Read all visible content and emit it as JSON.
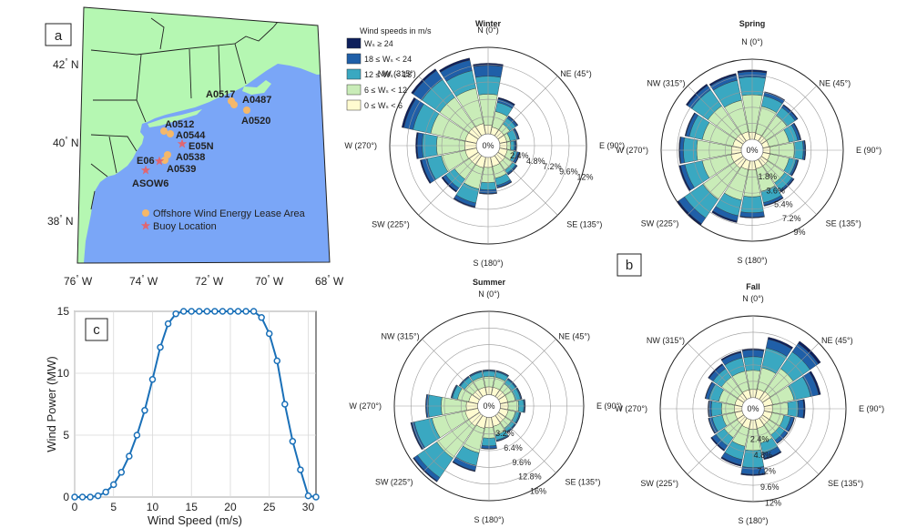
{
  "panel_labels": {
    "a": "a",
    "b": "b",
    "c": "c"
  },
  "map": {
    "lat_labels": [
      {
        "deg": "42",
        "dir": "N"
      },
      {
        "deg": "40",
        "dir": "N"
      },
      {
        "deg": "38",
        "dir": "N"
      }
    ],
    "lon_labels": [
      {
        "deg": "76",
        "dir": "W"
      },
      {
        "deg": "74",
        "dir": "W"
      },
      {
        "deg": "72",
        "dir": "W"
      },
      {
        "deg": "70",
        "dir": "W"
      },
      {
        "deg": "68",
        "dir": "W"
      }
    ],
    "lease_areas": [
      "A0517",
      "A0487",
      "A0520",
      "A0512",
      "A0544",
      "A0538",
      "A0539"
    ],
    "buoys": [
      "E05N",
      "E06",
      "ASOW6"
    ],
    "legend": {
      "lease": "Offshore Wind Energy Lease Area",
      "buoy": "Buoy Location"
    },
    "colors": {
      "land": "#b5f7b2",
      "ocean": "#7aa6f7",
      "lease": "#f5b869",
      "buoy": "#e06670"
    }
  },
  "rose_legend": {
    "title": "Wind speeds in m/s",
    "bins": [
      {
        "label": "Wₛ ≥ 24",
        "color": "#0d1f5c"
      },
      {
        "label": "18 ≤ Wₛ < 24",
        "color": "#1f5fa8"
      },
      {
        "label": "12 ≤ Wₛ < 18",
        "color": "#3aa8c1"
      },
      {
        "label": "6 ≤ Wₛ < 12",
        "color": "#c9ecb8"
      },
      {
        "label": "0 ≤ Wₛ < 6",
        "color": "#fffbd0"
      }
    ]
  },
  "rose_direction_labels": [
    "N (0°)",
    "NE (45°)",
    "E (90°)",
    "SE (135°)",
    "S (180°)",
    "SW (225°)",
    "W (270°)",
    "NW (315°)"
  ],
  "chart_data": [
    {
      "type": "windrose",
      "title": "Winter",
      "rings": [
        "2.4%",
        "4.8%",
        "7.2%",
        "9.6%",
        "12%"
      ],
      "max_pct": 12,
      "directions_deg": [
        0,
        22.5,
        45,
        67.5,
        90,
        112.5,
        135,
        157.5,
        180,
        202.5,
        225,
        247.5,
        270,
        292.5,
        315,
        337.5
      ],
      "cumulative_pct": [
        [
          1.2,
          1.0,
          1.0,
          1.0,
          1.0,
          1.1,
          1.2,
          1.3,
          1.4,
          1.5,
          1.5,
          1.6,
          1.6,
          1.6,
          1.6,
          1.5
        ],
        [
          5.5,
          3.2,
          2.0,
          1.5,
          1.5,
          2.0,
          2.5,
          3.0,
          3.5,
          4.5,
          4.0,
          5.0,
          5.5,
          6.5,
          6.5,
          6.5
        ],
        [
          8.0,
          4.5,
          3.0,
          2.5,
          2.0,
          2.5,
          3.0,
          4.0,
          4.5,
          6.5,
          5.5,
          7.0,
          7.5,
          9.0,
          9.5,
          9.0
        ],
        [
          9.5,
          5.0,
          3.3,
          2.7,
          2.2,
          2.8,
          3.2,
          4.3,
          5.0,
          7.0,
          6.0,
          7.8,
          8.2,
          10.3,
          11.0,
          10.5
        ],
        [
          9.8,
          5.2,
          3.4,
          2.8,
          2.3,
          2.9,
          3.3,
          4.4,
          5.1,
          7.2,
          6.2,
          8.0,
          8.4,
          10.6,
          11.3,
          10.8
        ]
      ]
    },
    {
      "type": "windrose",
      "title": "Spring",
      "rings": [
        "1.8%",
        "3.6%",
        "5.4%",
        "7.2%",
        "9%"
      ],
      "max_pct": 9,
      "directions_deg": [
        0,
        22.5,
        45,
        67.5,
        90,
        112.5,
        135,
        157.5,
        180,
        202.5,
        225,
        247.5,
        270,
        292.5,
        315,
        337.5
      ],
      "cumulative_pct": [
        [
          0.8,
          0.7,
          0.7,
          0.7,
          0.8,
          0.8,
          0.9,
          0.9,
          1.0,
          1.0,
          1.2,
          1.2,
          1.1,
          1.0,
          1.0,
          0.9
        ],
        [
          5.0,
          3.8,
          3.5,
          3.0,
          3.5,
          3.0,
          3.2,
          3.5,
          4.0,
          4.5,
          5.5,
          4.5,
          5.0,
          4.5,
          4.8,
          4.5
        ],
        [
          7.0,
          5.0,
          4.6,
          4.0,
          4.5,
          3.8,
          4.2,
          4.8,
          5.8,
          6.3,
          8.0,
          6.5,
          6.5,
          6.0,
          7.0,
          6.8
        ],
        [
          7.6,
          5.4,
          4.9,
          4.3,
          4.7,
          4.0,
          4.4,
          5.1,
          6.3,
          6.9,
          8.8,
          7.0,
          6.9,
          6.4,
          7.6,
          7.4
        ],
        [
          7.8,
          5.5,
          5.0,
          4.4,
          4.8,
          4.1,
          4.5,
          5.2,
          6.4,
          7.1,
          9.0,
          7.2,
          7.0,
          6.5,
          7.8,
          7.6
        ]
      ]
    },
    {
      "type": "windrose",
      "title": "Summer",
      "rings": [
        "3.2%",
        "6.4%",
        "9.6%",
        "12.8%",
        "16%"
      ],
      "max_pct": 16,
      "directions_deg": [
        0,
        22.5,
        45,
        67.5,
        90,
        112.5,
        135,
        157.5,
        180,
        202.5,
        225,
        247.5,
        270,
        292.5,
        315,
        337.5
      ],
      "cumulative_pct": [
        [
          1.5,
          1.5,
          1.5,
          1.5,
          1.5,
          1.6,
          1.6,
          1.8,
          2.0,
          2.2,
          2.5,
          2.5,
          2.2,
          1.8,
          1.6,
          1.5
        ],
        [
          3.5,
          3.5,
          3.0,
          3.0,
          3.5,
          3.0,
          3.0,
          3.5,
          4.0,
          7.0,
          10.0,
          9.0,
          7.0,
          4.0,
          3.5,
          3.5
        ],
        [
          4.5,
          4.5,
          4.0,
          4.0,
          4.5,
          3.8,
          3.8,
          4.5,
          5.5,
          9.5,
          14.5,
          12.5,
          9.5,
          5.0,
          4.5,
          4.5
        ],
        [
          4.7,
          4.7,
          4.2,
          4.2,
          4.7,
          4.0,
          4.0,
          4.7,
          6.0,
          10.5,
          15.3,
          13.0,
          9.9,
          5.2,
          4.7,
          4.7
        ],
        [
          4.8,
          4.8,
          4.3,
          4.3,
          4.8,
          4.1,
          4.1,
          4.8,
          6.1,
          10.7,
          15.5,
          13.2,
          10.0,
          5.3,
          4.8,
          4.8
        ]
      ]
    },
    {
      "type": "windrose",
      "title": "Fall",
      "rings": [
        "2.4%",
        "4.8%",
        "7.2%",
        "9.6%",
        "12%"
      ],
      "max_pct": 12,
      "directions_deg": [
        0,
        22.5,
        45,
        67.5,
        90,
        112.5,
        135,
        157.5,
        180,
        202.5,
        225,
        247.5,
        270,
        292.5,
        315,
        337.5
      ],
      "cumulative_pct": [
        [
          1.2,
          1.3,
          1.4,
          1.3,
          1.2,
          1.2,
          1.2,
          1.3,
          1.4,
          1.3,
          1.2,
          1.1,
          1.1,
          1.1,
          1.1,
          1.2
        ],
        [
          4.0,
          4.5,
          5.5,
          4.5,
          3.5,
          3.0,
          3.0,
          3.5,
          4.5,
          4.0,
          3.5,
          3.0,
          3.0,
          3.5,
          4.0,
          4.0
        ],
        [
          6.0,
          7.5,
          8.5,
          7.0,
          5.0,
          4.0,
          4.0,
          5.0,
          7.0,
          6.0,
          5.0,
          4.5,
          4.5,
          5.0,
          5.5,
          6.0
        ],
        [
          7.0,
          8.8,
          10.0,
          8.2,
          5.8,
          4.5,
          4.5,
          5.8,
          8.0,
          6.8,
          5.7,
          5.0,
          4.9,
          5.5,
          6.2,
          6.8
        ],
        [
          7.2,
          9.1,
          10.4,
          8.5,
          6.0,
          4.6,
          4.6,
          6.0,
          8.2,
          7.0,
          5.9,
          5.1,
          5.0,
          5.6,
          6.4,
          7.0
        ]
      ]
    },
    {
      "type": "line",
      "title": "",
      "xlabel": "Wind Speed (m/s)",
      "ylabel": "Wind Power (MW)",
      "xlim": [
        0,
        31
      ],
      "ylim": [
        0,
        15
      ],
      "xticks": [
        0,
        5,
        10,
        15,
        20,
        25,
        30
      ],
      "yticks": [
        0,
        5,
        10,
        15
      ],
      "x": [
        0,
        1,
        2,
        3,
        4,
        5,
        6,
        7,
        8,
        9,
        10,
        11,
        12,
        13,
        14,
        15,
        16,
        17,
        18,
        19,
        20,
        21,
        22,
        23,
        24,
        25,
        26,
        27,
        28,
        29,
        30,
        31
      ],
      "y": [
        0,
        0,
        0,
        0.1,
        0.4,
        1.0,
        2.0,
        3.3,
        5.0,
        7.0,
        9.5,
        12.1,
        14.0,
        14.8,
        15,
        15,
        15,
        15,
        15,
        15,
        15,
        15,
        15,
        15,
        14.5,
        13.2,
        11.0,
        7.5,
        4.5,
        2.2,
        0.1,
        0
      ],
      "color": "#1a70b8"
    }
  ]
}
